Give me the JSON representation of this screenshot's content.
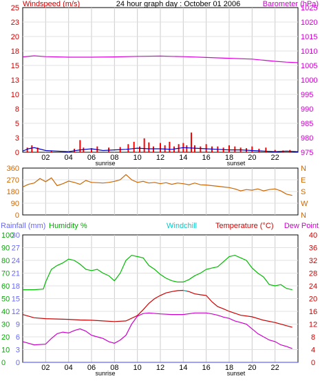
{
  "chart_data": [
    {
      "type": "line",
      "title": "24 hour graph day : October 01 2006",
      "ylabel_left": "Windspeed (m/s)",
      "ylabel_right": "Barometer (hPa)",
      "x_ticks": [
        "02",
        "04",
        "06",
        "08",
        "10",
        "12",
        "14",
        "16",
        "18",
        "20",
        "22"
      ],
      "x_annotations": [
        "sunrise",
        "sunset"
      ],
      "y_left_ticks": [
        "0",
        "3",
        "5",
        "8",
        "10",
        "13",
        "15",
        "18",
        "20",
        "23",
        "25"
      ],
      "y_right_ticks": [
        "975",
        "980",
        "985",
        "990",
        "995",
        "1000",
        "1005",
        "1010",
        "1015",
        "1020",
        "1025"
      ],
      "xlim": [
        0,
        24
      ],
      "ylim_left": [
        0,
        25
      ],
      "ylim_right": [
        975,
        1027.5
      ],
      "grid": true,
      "colors": {
        "windspeed_bars": "#ff0000",
        "windspeed_line": "#0000cc",
        "barometer": "#dd00dd"
      },
      "series": [
        {
          "name": "Barometer (hPa)",
          "axis": "right",
          "x": [
            0,
            1,
            2,
            4,
            6,
            8,
            10,
            12,
            13,
            14,
            16,
            18,
            20,
            21,
            22,
            23,
            24
          ],
          "y": [
            1009.6,
            1010.0,
            1009.7,
            1009.5,
            1009.5,
            1009.6,
            1009.8,
            1009.9,
            1009.8,
            1009.7,
            1009.4,
            1009.1,
            1008.8,
            1008.4,
            1008.0,
            1007.7,
            1007.5
          ]
        },
        {
          "name": "Windspeed (m/s)",
          "axis": "left",
          "x": [
            0,
            0.5,
            1,
            2,
            3,
            4,
            5,
            6,
            7,
            8,
            9,
            10,
            11,
            12,
            13,
            14,
            15,
            16,
            17,
            18,
            19,
            20,
            21,
            22,
            23,
            24
          ],
          "y": [
            0.2,
            0.6,
            0.8,
            0.3,
            0.2,
            0.1,
            0.4,
            0.6,
            0.3,
            0.4,
            0.5,
            0.7,
            0.6,
            0.6,
            0.5,
            0.8,
            0.7,
            0.6,
            0.5,
            0.4,
            0.4,
            0.3,
            0.2,
            0.1,
            0.2,
            0.1
          ]
        },
        {
          "name": "Gust (m/s)",
          "axis": "left",
          "bars": true,
          "x": [
            0.4,
            0.8,
            1.3,
            2.5,
            4.5,
            5.0,
            5.3,
            6.0,
            6.5,
            7.5,
            8.5,
            9.2,
            9.7,
            10.2,
            10.6,
            11.0,
            11.4,
            12.0,
            12.4,
            12.8,
            13.2,
            13.6,
            14.0,
            14.3,
            14.7,
            15.0,
            15.5,
            16.0,
            16.5,
            17.0,
            17.5,
            18.0,
            18.5,
            19.0,
            19.5,
            20.0,
            20.6,
            21.2,
            22.0,
            22.7,
            23.3
          ],
          "y": [
            0.8,
            1.2,
            0.8,
            0.3,
            0.6,
            2.1,
            0.8,
            0.7,
            1.0,
            0.8,
            0.9,
            1.4,
            1.8,
            1.0,
            2.4,
            1.7,
            1.0,
            1.6,
            1.2,
            1.8,
            1.0,
            1.4,
            1.6,
            1.2,
            3.4,
            1.2,
            1.0,
            1.4,
            1.0,
            1.0,
            0.8,
            1.2,
            1.0,
            0.8,
            0.7,
            1.0,
            0.6,
            0.8,
            0.4,
            0.3,
            0.4
          ]
        }
      ]
    },
    {
      "type": "line",
      "ylabel_left": "",
      "ylabel_right": "N W S E N",
      "y_left_ticks": [
        "0",
        "90",
        "180",
        "270",
        "360"
      ],
      "y_right_ticks": [
        "N",
        "W",
        "S",
        "E",
        "N"
      ],
      "xlim": [
        0,
        24
      ],
      "ylim": [
        0,
        360
      ],
      "grid": true,
      "colors": {
        "direction": "#cc6600"
      },
      "series": [
        {
          "name": "Wind direction",
          "x": [
            0,
            0.5,
            1,
            1.5,
            2,
            2.5,
            3,
            3.5,
            4,
            4.5,
            5,
            5.5,
            6,
            6.5,
            7,
            7.5,
            8,
            8.5,
            9,
            9.5,
            10,
            10.5,
            11,
            11.5,
            12,
            12.5,
            13,
            13.5,
            14,
            14.5,
            15,
            15.5,
            16,
            16.5,
            17,
            17.5,
            18,
            18.5,
            19,
            19.5,
            20,
            20.5,
            21,
            21.5,
            22,
            22.5,
            23,
            23.5
          ],
          "y": [
            215,
            235,
            245,
            280,
            255,
            285,
            225,
            240,
            260,
            250,
            235,
            265,
            250,
            248,
            245,
            250,
            258,
            270,
            310,
            270,
            250,
            258,
            245,
            250,
            240,
            248,
            235,
            245,
            240,
            232,
            245,
            232,
            230,
            225,
            220,
            215,
            210,
            200,
            185,
            195,
            190,
            200,
            185,
            195,
            200,
            185,
            160,
            150
          ]
        }
      ]
    },
    {
      "type": "line",
      "ylabel_left": "Rainfall (mm)",
      "ylabel_left2": "Humidity %",
      "ylabel_center": "Windchill",
      "ylabel_right": "Temperature (°C)",
      "ylabel_right2": "Dew Point",
      "y_rain_ticks": [
        "0",
        "3",
        "6",
        "9",
        "12",
        "15",
        "18",
        "21",
        "24",
        "27",
        "30"
      ],
      "y_humidity_ticks": [
        "0",
        "10",
        "20",
        "30",
        "40",
        "50",
        "60",
        "70",
        "80",
        "90",
        "100"
      ],
      "y_temp_ticks": [
        "0",
        "4",
        "8",
        "12",
        "16",
        "20",
        "24",
        "28",
        "32",
        "36",
        "40"
      ],
      "x_ticks": [
        "02",
        "04",
        "06",
        "08",
        "10",
        "12",
        "14",
        "16",
        "18",
        "20",
        "22"
      ],
      "x_annotations": [
        "sunrise",
        "sunset"
      ],
      "xlim": [
        0,
        24
      ],
      "ylim_temp": [
        0,
        40
      ],
      "ylim_humidity": [
        0,
        100
      ],
      "ylim_rain": [
        0,
        30
      ],
      "grid": true,
      "colors": {
        "humidity": "#00bb00",
        "temperature": "#cc0000",
        "dewpoint": "#cc00cc",
        "windchill": "#00cccc",
        "rainfall": "#6666ff"
      },
      "series": [
        {
          "name": "Humidity %",
          "axis": "humidity",
          "x": [
            0,
            1,
            1.8,
            2.0,
            2.5,
            3.0,
            3.5,
            4.0,
            4.5,
            5.0,
            5.5,
            6.0,
            6.5,
            7.0,
            7.5,
            8.0,
            8.5,
            9.0,
            9.5,
            10.0,
            10.5,
            11.0,
            11.5,
            12.0,
            12.5,
            13.0,
            13.5,
            14.0,
            14.5,
            15.0,
            15.5,
            16.0,
            16.5,
            17.0,
            17.5,
            18.0,
            18.5,
            19.0,
            19.5,
            20.0,
            20.5,
            21.0,
            21.5,
            22.0,
            22.5,
            23.0,
            23.5
          ],
          "y": [
            57,
            57,
            57.5,
            63,
            73,
            76,
            78,
            81,
            80,
            77,
            73,
            72,
            73,
            70,
            68,
            64,
            70,
            80,
            84,
            83,
            82,
            76,
            73,
            69,
            66,
            64,
            63,
            63,
            65,
            68,
            70,
            73,
            74,
            75,
            79,
            83,
            84,
            82,
            80,
            74,
            70,
            67,
            61,
            60,
            61,
            58,
            57
          ]
        },
        {
          "name": "Temperature (°C)",
          "axis": "temp",
          "x": [
            0,
            1,
            2,
            3,
            4,
            5,
            6,
            7,
            8,
            9,
            10,
            10.5,
            11,
            11.5,
            12,
            12.5,
            13,
            13.5,
            14,
            14.5,
            15,
            15.5,
            16,
            16.5,
            17,
            17.5,
            18,
            19,
            20,
            21,
            22,
            23,
            23.5
          ],
          "y": [
            15.0,
            14.0,
            13.7,
            13.6,
            13.5,
            13.3,
            13.2,
            13.0,
            12.8,
            13.0,
            14.7,
            16.5,
            18.5,
            20.0,
            21.0,
            21.8,
            22.2,
            22.5,
            22.6,
            22.2,
            21.5,
            21.2,
            21.0,
            19.0,
            17.5,
            16.8,
            16.0,
            14.8,
            14.3,
            13.2,
            12.5,
            11.5,
            11.0
          ]
        },
        {
          "name": "Dew Point",
          "axis": "temp",
          "x": [
            0,
            1,
            2,
            2.5,
            3,
            3.5,
            4,
            4.5,
            5,
            5.5,
            6,
            6.5,
            7,
            7.5,
            8,
            8.5,
            9,
            9.5,
            10,
            10.5,
            11,
            12,
            13,
            14,
            15,
            16,
            16.5,
            17,
            17.5,
            18,
            18.5,
            19,
            19.5,
            20,
            20.5,
            21,
            21.5,
            22,
            22.5,
            23,
            23.5
          ],
          "y": [
            6.5,
            5.5,
            5.7,
            7.5,
            9.0,
            9.5,
            9.2,
            10.0,
            10.5,
            9.8,
            8.5,
            8.0,
            7.5,
            6.5,
            6.0,
            7.0,
            8.5,
            12.0,
            14.5,
            15.3,
            15.5,
            15.2,
            15.0,
            15.0,
            15.5,
            15.5,
            15.2,
            14.8,
            14.2,
            13.8,
            13.0,
            12.5,
            12.0,
            10.5,
            9.0,
            8.0,
            7.0,
            6.5,
            5.5,
            5.0,
            4.3
          ]
        },
        {
          "name": "Windchill",
          "axis": "temp",
          "x": [
            14,
            14.3
          ],
          "y": [
            22.6,
            22.4
          ]
        },
        {
          "name": "Rainfall (mm)",
          "axis": "rain",
          "x": [
            0,
            24
          ],
          "y": [
            0,
            0
          ]
        }
      ]
    }
  ]
}
